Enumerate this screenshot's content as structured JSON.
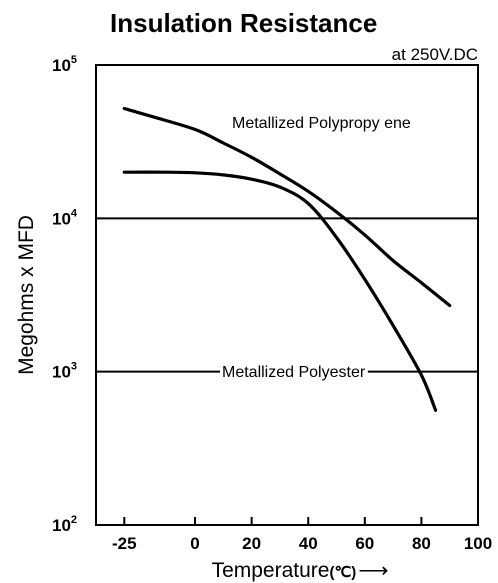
{
  "chart_data": {
    "type": "line",
    "title": "Insulation Resistance",
    "subtitle": "at 250V.DC",
    "xlabel": "Temperature",
    "xlabel_unit": "(℃)",
    "xlabel_arrow": "⟶",
    "ylabel": "Megohms x MFD",
    "y_scale": "log",
    "xlim": [
      -35,
      100
    ],
    "ylim": [
      100,
      100000
    ],
    "grid": "horizontal at decades",
    "x_ticks": [
      {
        "value": -25,
        "label": "-25"
      },
      {
        "value": 0,
        "label": "0"
      },
      {
        "value": 20,
        "label": "20"
      },
      {
        "value": 40,
        "label": "40"
      },
      {
        "value": 60,
        "label": "60"
      },
      {
        "value": 80,
        "label": "80"
      },
      {
        "value": 100,
        "label": "100"
      }
    ],
    "y_ticks": [
      {
        "value": 100,
        "base": "10",
        "exp": "2"
      },
      {
        "value": 1000,
        "base": "10",
        "exp": "3"
      },
      {
        "value": 10000,
        "base": "10",
        "exp": "4"
      },
      {
        "value": 100000,
        "base": "10",
        "exp": "5"
      }
    ],
    "series": [
      {
        "name": "Metallized Polypropy ene",
        "x": [
          -25,
          -15,
          0,
          10,
          20,
          30,
          40,
          50,
          60,
          70,
          80,
          90
        ],
        "y": [
          52000,
          46000,
          38000,
          31000,
          25000,
          19500,
          15000,
          11000,
          7800,
          5300,
          3800,
          2700
        ]
      },
      {
        "name": "Metallized Polyester",
        "x": [
          -25,
          -10,
          0,
          10,
          20,
          30,
          40,
          50,
          60,
          70,
          80,
          85
        ],
        "y": [
          20000,
          20000,
          19800,
          19200,
          18000,
          16000,
          12500,
          7500,
          4000,
          2000,
          950,
          560
        ]
      }
    ]
  }
}
